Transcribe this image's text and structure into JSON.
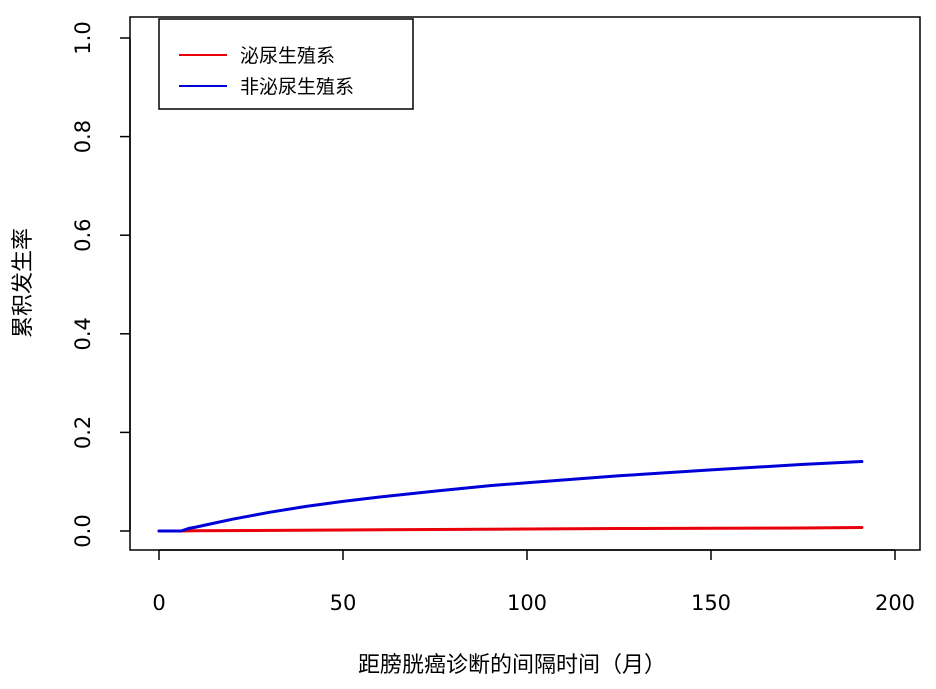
{
  "chart_data": {
    "type": "line",
    "title": "",
    "xlabel": "距膀胱癌诊断的间隔时间（月）",
    "ylabel": "累积发生率",
    "xlim": [
      0,
      200
    ],
    "ylim": [
      0,
      1.0
    ],
    "x_ticks": [
      0,
      50,
      100,
      150,
      200
    ],
    "x_tick_labels": [
      "0",
      "50",
      "100",
      "150",
      "200"
    ],
    "y_ticks": [
      0,
      0.2,
      0.4,
      0.6,
      0.8,
      1.0
    ],
    "y_tick_labels": [
      "0.0",
      "0.2",
      "0.4",
      "0.6",
      "0.8",
      "1.0"
    ],
    "grid": false,
    "legend_position": "top-left",
    "series": [
      {
        "name": "泌尿生殖系",
        "color": "#e8000b",
        "x": [
          0,
          6,
          10,
          25,
          50,
          75,
          100,
          125,
          150,
          175,
          191
        ],
        "y": [
          0,
          0,
          0.0005,
          0.001,
          0.002,
          0.003,
          0.004,
          0.005,
          0.0055,
          0.006,
          0.007
        ]
      },
      {
        "name": "非泌尿生殖系",
        "color": "#0000d8",
        "x": [
          0,
          6,
          8,
          10,
          15,
          20,
          30,
          40,
          50,
          60,
          75,
          90,
          100,
          125,
          150,
          175,
          191
        ],
        "y": [
          0,
          0,
          0.005,
          0.008,
          0.016,
          0.024,
          0.038,
          0.05,
          0.06,
          0.069,
          0.081,
          0.092,
          0.098,
          0.112,
          0.124,
          0.135,
          0.141
        ]
      }
    ]
  }
}
